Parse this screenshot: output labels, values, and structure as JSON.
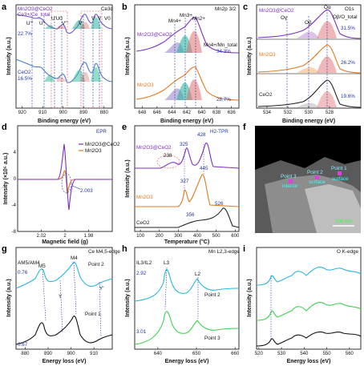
{
  "panels": [
    {
      "id": "a",
      "letter": "a",
      "xlabel": "Binding energy (eV)",
      "ylabel": "Intensity (a.u.)",
      "xlim": [
        923,
        876
      ],
      "xticks": [
        920,
        910,
        900,
        890,
        880
      ],
      "top_label": "Mn2O3@CeO2",
      "top_pct": "22.7%",
      "bottom_label": "CeO2",
      "bottom_pct": "16.5%",
      "ratio_label": "Ce3+/Ce_total",
      "edge_label": "Ce3d",
      "peak_labels": [
        "U'''",
        "U''",
        "U'U0",
        "V'''",
        "V''",
        "V'",
        "V",
        "V0"
      ],
      "top_colors": [
        "#6a5acd",
        "#2fb39c",
        "#d94a4a"
      ],
      "bottom_colors": [
        "#4a7bd0",
        "#3cbfa0",
        "#d94a4a"
      ]
    },
    {
      "id": "b",
      "letter": "b",
      "xlabel": "Binding energy (eV)",
      "ylabel": "Intensity (a.u.)",
      "xlim": [
        649,
        635
      ],
      "xticks": [
        648,
        646,
        644,
        642,
        640,
        638,
        636
      ],
      "edge_label": "Mn2p 3/2",
      "top_label": "Mn2O3@CeO2",
      "top_pct": "34.3%",
      "bottom_label": "Mn2O3",
      "bottom_pct": "28.7%",
      "peak_labels": [
        "Mn4+",
        "Mn3+",
        "Mn2+"
      ],
      "ratio_label": "Mn4+/Mn_total"
    },
    {
      "id": "c",
      "letter": "c",
      "xlabel": "Binding energy (eV)",
      "ylabel": "Intensity (a.u.)",
      "xlim": [
        535,
        525
      ],
      "xticks": [
        534,
        532,
        530,
        528
      ],
      "edge_label": "O1s",
      "traces": [
        {
          "name": "Mn2O3@CeO2",
          "pct": "31.5%"
        },
        {
          "name": "Mn2O3",
          "pct": "26.2%"
        },
        {
          "name": "CeO2",
          "pct": "19.6%"
        }
      ],
      "peak_labels": [
        "Oγ",
        "Oβ",
        "Oα"
      ],
      "ratio_label": "Oβ/O_total"
    },
    {
      "id": "d",
      "letter": "d",
      "xlabel": "Magnetic field (g)",
      "ylabel": "Intensity (×10⁵ a.u.)",
      "xlim": [
        2.04,
        1.96
      ],
      "xticks": [
        2.02,
        2.0,
        1.98
      ],
      "ylim": [
        -8,
        8
      ],
      "yticks": [
        4,
        0,
        -4,
        -8
      ],
      "title": "EPR",
      "legend": [
        "Mn2O3@CeO2",
        "Mn2O3"
      ],
      "annotation": "2.003"
    },
    {
      "id": "e",
      "letter": "e",
      "xlabel": "Temperature (°C)",
      "ylabel": "Intensity (a.u.)",
      "xlim": [
        70,
        620
      ],
      "xticks": [
        100,
        200,
        300,
        400,
        500,
        600
      ],
      "title": "H2-TPR",
      "traces": [
        {
          "name": "Mn2O3@CeO2",
          "peaks": [
            "238",
            "325",
            "428"
          ]
        },
        {
          "name": "Mn2O3",
          "peaks": [
            "327",
            "445"
          ]
        },
        {
          "name": "CeO2",
          "peaks": [
            "356",
            "526"
          ]
        }
      ]
    },
    {
      "id": "f",
      "letter": "f",
      "points": [
        "Point 1",
        "Point 2",
        "Point 3"
      ],
      "point_notes": [
        "surface",
        "surface",
        "interior"
      ],
      "scale": "100 nm"
    },
    {
      "id": "g",
      "letter": "g",
      "xlabel": "Energy loss (eV)",
      "ylabel": "Intensity (a.u.)",
      "xlim": [
        876,
        918
      ],
      "xticks": [
        880,
        890,
        900,
        910
      ],
      "title": "Ce M4,5-edge",
      "ratio_label": "AM5/AM4",
      "ratios": [
        "0.76",
        "0.67"
      ],
      "points": [
        "Point 2",
        "Point 1"
      ],
      "peak_labels": [
        "M5",
        "Y",
        "M4",
        "Y'"
      ]
    },
    {
      "id": "h",
      "letter": "h",
      "xlabel": "Energy loss (eV)",
      "ylabel": "Intensity (a.u.)",
      "xlim": [
        634,
        661
      ],
      "xticks": [
        640,
        650,
        660
      ],
      "title": "Mn L2,3-edge",
      "ratio_label": "IL3/IL2",
      "ratios": [
        "2.92",
        "3.01"
      ],
      "points": [
        "Point 2",
        "Point 3"
      ],
      "peak_labels": [
        "L3",
        "L2"
      ]
    },
    {
      "id": "i",
      "letter": "i",
      "xlabel": "Energy loss (eV)",
      "ylabel": "Intensity (a.u.)",
      "xlim": [
        519,
        565
      ],
      "xticks": [
        520,
        530,
        540,
        550,
        560
      ],
      "title": "O K-edge"
    }
  ],
  "chart_data": [
    {
      "type": "line",
      "title": "",
      "xlabel": "Binding energy (eV)",
      "ylabel": "Intensity (a.u.)",
      "series": [
        {
          "name": "Mn2O3@CeO2",
          "values": []
        },
        {
          "name": "CeO2",
          "values": []
        }
      ]
    },
    {
      "type": "line",
      "title": "Mn2p 3/2",
      "xlabel": "Binding energy (eV)",
      "ylabel": "Intensity (a.u.)",
      "series": [
        {
          "name": "Mn2O3@CeO2",
          "values": []
        },
        {
          "name": "Mn2O3",
          "values": []
        }
      ]
    },
    {
      "type": "line",
      "title": "O1s",
      "xlabel": "Binding energy (eV)",
      "ylabel": "Intensity (a.u.)",
      "series": [
        {
          "name": "Mn2O3@CeO2",
          "values": []
        },
        {
          "name": "Mn2O3",
          "values": []
        },
        {
          "name": "CeO2",
          "values": []
        }
      ]
    },
    {
      "type": "line",
      "title": "EPR",
      "xlabel": "Magnetic field (g)",
      "ylabel": "Intensity (×10⁵ a.u.)",
      "series": [
        {
          "name": "Mn2O3@CeO2",
          "values": []
        },
        {
          "name": "Mn2O3",
          "values": []
        }
      ]
    },
    {
      "type": "line",
      "title": "H2-TPR",
      "xlabel": "Temperature (°C)",
      "ylabel": "Intensity (a.u.)",
      "series": [
        {
          "name": "Mn2O3@CeO2",
          "values": []
        },
        {
          "name": "Mn2O3",
          "values": []
        },
        {
          "name": "CeO2",
          "values": []
        }
      ]
    },
    {
      "type": "line",
      "title": "Ce M4,5-edge",
      "xlabel": "Energy loss (eV)",
      "ylabel": "Intensity (a.u.)",
      "series": [
        {
          "name": "Point 2",
          "values": []
        },
        {
          "name": "Point 1",
          "values": []
        }
      ]
    },
    {
      "type": "line",
      "title": "Mn L2,3-edge",
      "xlabel": "Energy loss (eV)",
      "ylabel": "Intensity (a.u.)",
      "series": [
        {
          "name": "Point 2",
          "values": []
        },
        {
          "name": "Point 3",
          "values": []
        }
      ]
    },
    {
      "type": "line",
      "title": "O K-edge",
      "xlabel": "Energy loss (eV)",
      "ylabel": "Intensity (a.u.)",
      "series": []
    }
  ]
}
